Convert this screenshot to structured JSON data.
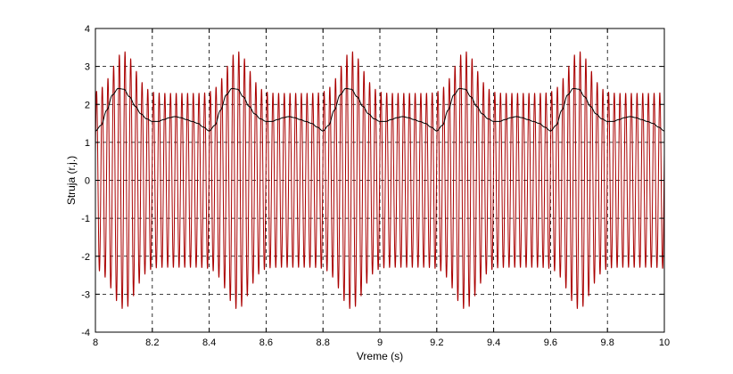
{
  "chart_data": {
    "type": "line",
    "title": "",
    "xlabel": "Vreme (s)",
    "ylabel": "Struja (r.j.)",
    "xlim": [
      8,
      10
    ],
    "ylim": [
      -4,
      4
    ],
    "xticks": [
      8,
      8.2,
      8.4,
      8.6,
      8.8,
      9,
      9.2,
      9.4,
      9.6,
      9.8,
      10
    ],
    "xtick_labels": [
      "8",
      "8.2",
      "8.4",
      "8.6",
      "8.8",
      "9",
      "9.2",
      "9.4",
      "9.6",
      "9.8",
      "10"
    ],
    "yticks": [
      -4,
      -3,
      -2,
      -1,
      0,
      1,
      2,
      3,
      4
    ],
    "ytick_labels": [
      "-4",
      "-3",
      "-2",
      "-1",
      "0",
      "1",
      "2",
      "3",
      "4"
    ],
    "grid": true,
    "grid_style": "dashed",
    "series": [
      {
        "color": "#aa0000",
        "description_values": {
          "carrier_frequency_hz": 50,
          "envelope_period_s": 0.4,
          "envelope_max": 3.4,
          "envelope_min": 2.3
        }
      },
      {
        "color": "#000000",
        "x": [
          8.0,
          8.02,
          8.04,
          8.06,
          8.08,
          8.1,
          8.12,
          8.14,
          8.16,
          8.18,
          8.2,
          8.22,
          8.24,
          8.26,
          8.28,
          8.3,
          8.32,
          8.34,
          8.36,
          8.38,
          8.4
        ],
        "y": [
          1.3,
          1.45,
          1.85,
          2.25,
          2.42,
          2.4,
          2.2,
          1.95,
          1.75,
          1.62,
          1.55,
          1.55,
          1.6,
          1.65,
          1.68,
          1.65,
          1.6,
          1.55,
          1.5,
          1.4,
          1.3
        ],
        "period_s": 0.4
      }
    ]
  }
}
